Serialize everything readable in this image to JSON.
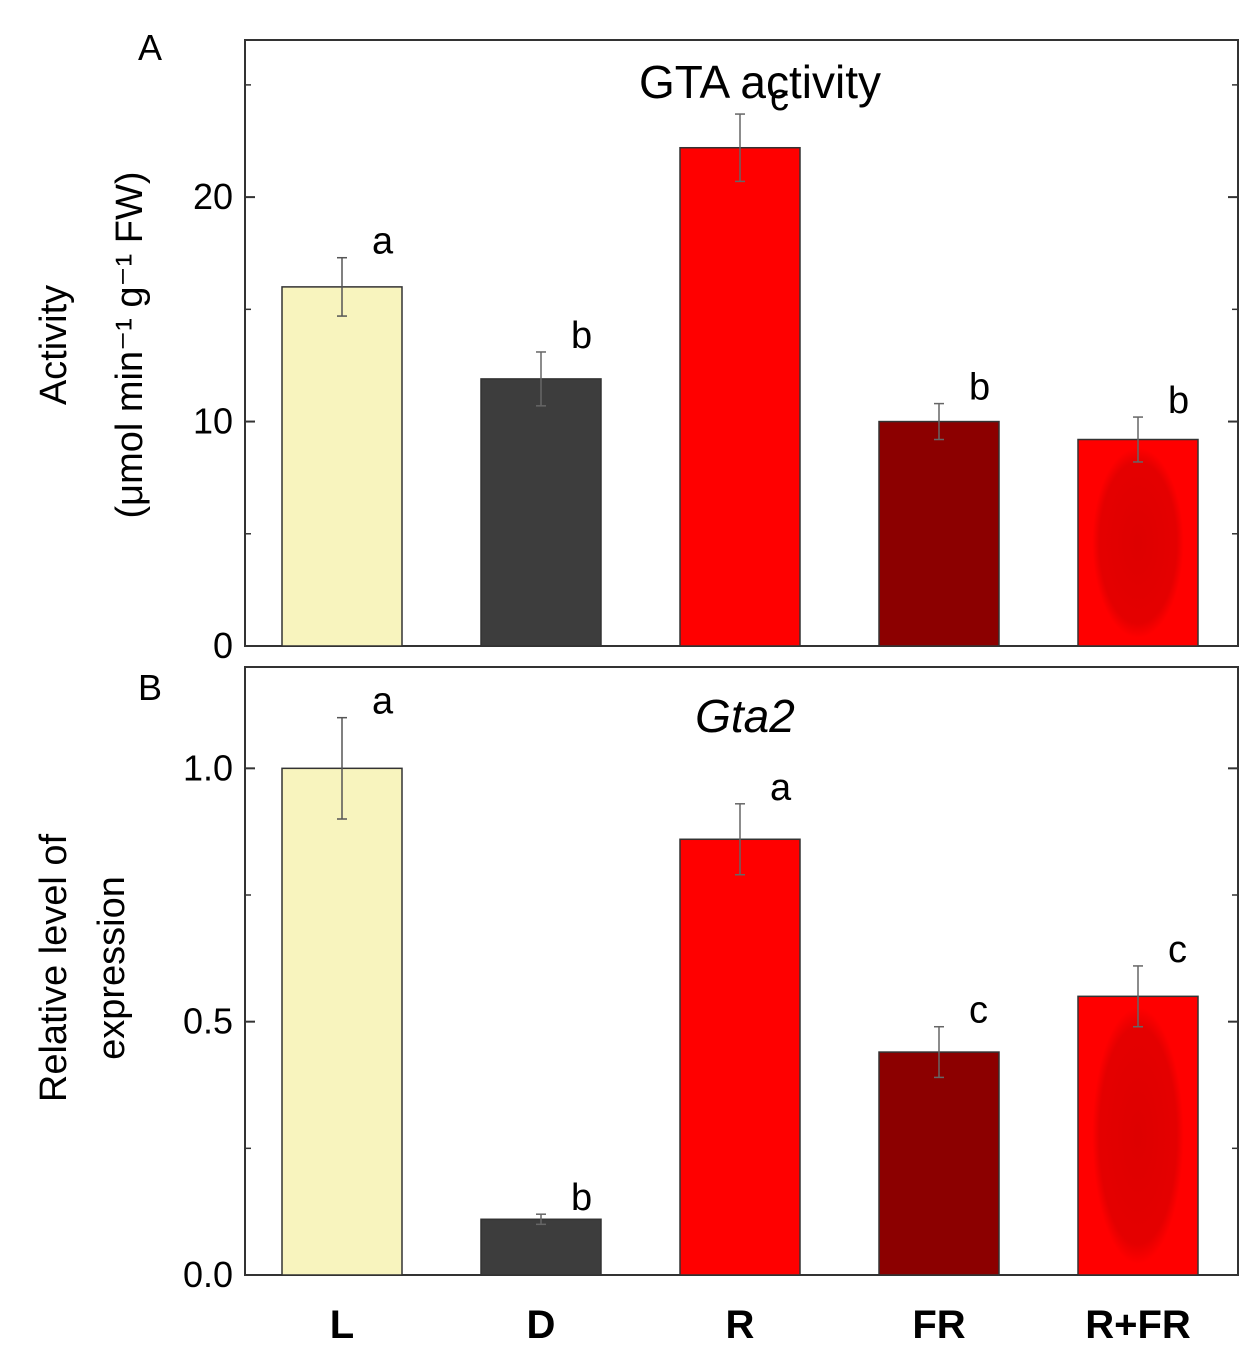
{
  "chart_data": [
    {
      "type": "bar",
      "panel": "A",
      "title": "GTA activity",
      "title_italic": false,
      "ylabel_main": "Activity",
      "ylabel_units": "(μmol min⁻¹ g⁻¹ FW)",
      "categories": [
        "L",
        "D",
        "R",
        "FR",
        "R+FR"
      ],
      "values": [
        16.0,
        11.9,
        22.2,
        10.0,
        9.2
      ],
      "errors": [
        1.3,
        1.2,
        1.5,
        0.8,
        1.0
      ],
      "significance": [
        "a",
        "b",
        "c",
        "b",
        "b"
      ],
      "ylim": [
        0,
        27
      ],
      "yticks": [
        0,
        10,
        20
      ],
      "ytick_labels": [
        "0",
        "10",
        "20"
      ]
    },
    {
      "type": "bar",
      "panel": "B",
      "title": "Gta2",
      "title_italic": true,
      "ylabel_main": "Relative level of",
      "ylabel_units": "expression",
      "categories": [
        "L",
        "D",
        "R",
        "FR",
        "R+FR"
      ],
      "values": [
        1.0,
        0.11,
        0.86,
        0.44,
        0.55
      ],
      "errors": [
        0.1,
        0.01,
        0.07,
        0.05,
        0.06
      ],
      "significance": [
        "a",
        "b",
        "a",
        "c",
        "c"
      ],
      "ylim": [
        0,
        1.2
      ],
      "yticks": [
        0.0,
        0.5,
        1.0
      ],
      "ytick_labels": [
        "0.0",
        "0.5",
        "1.0"
      ]
    }
  ],
  "x_category_labels": [
    "L",
    "D",
    "R",
    "FR",
    "R+FR"
  ],
  "colors": {
    "L": "#f8f4be",
    "D": "#3d3d3d",
    "R": "#ff0000",
    "FR": "#8c0000",
    "R+FR": "#ff0000",
    "R+FR_inner": "#dc0000"
  }
}
